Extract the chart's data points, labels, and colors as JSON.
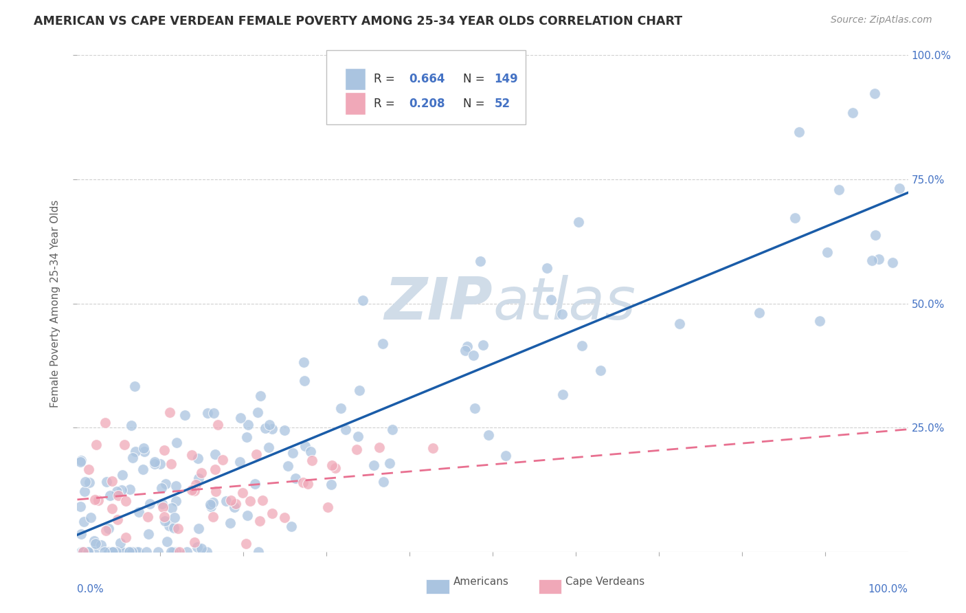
{
  "title": "AMERICAN VS CAPE VERDEAN FEMALE POVERTY AMONG 25-34 YEAR OLDS CORRELATION CHART",
  "source": "Source: ZipAtlas.com",
  "ylabel": "Female Poverty Among 25-34 Year Olds",
  "american_R": 0.664,
  "american_N": 149,
  "capeverdean_R": 0.208,
  "capeverdean_N": 52,
  "american_color": "#aac4e0",
  "capeverdean_color": "#f0a8b8",
  "american_line_color": "#1a5ca8",
  "capeverdean_line_color": "#e87090",
  "background_color": "#ffffff",
  "watermark_color": "#d0dce8",
  "legend_R_N_color": "#4472c4",
  "grid_color": "#d0d0d0",
  "right_tick_color": "#4472c4",
  "bottom_label_color": "#4472c4",
  "ylabel_color": "#606060",
  "title_color": "#303030",
  "source_color": "#909090"
}
